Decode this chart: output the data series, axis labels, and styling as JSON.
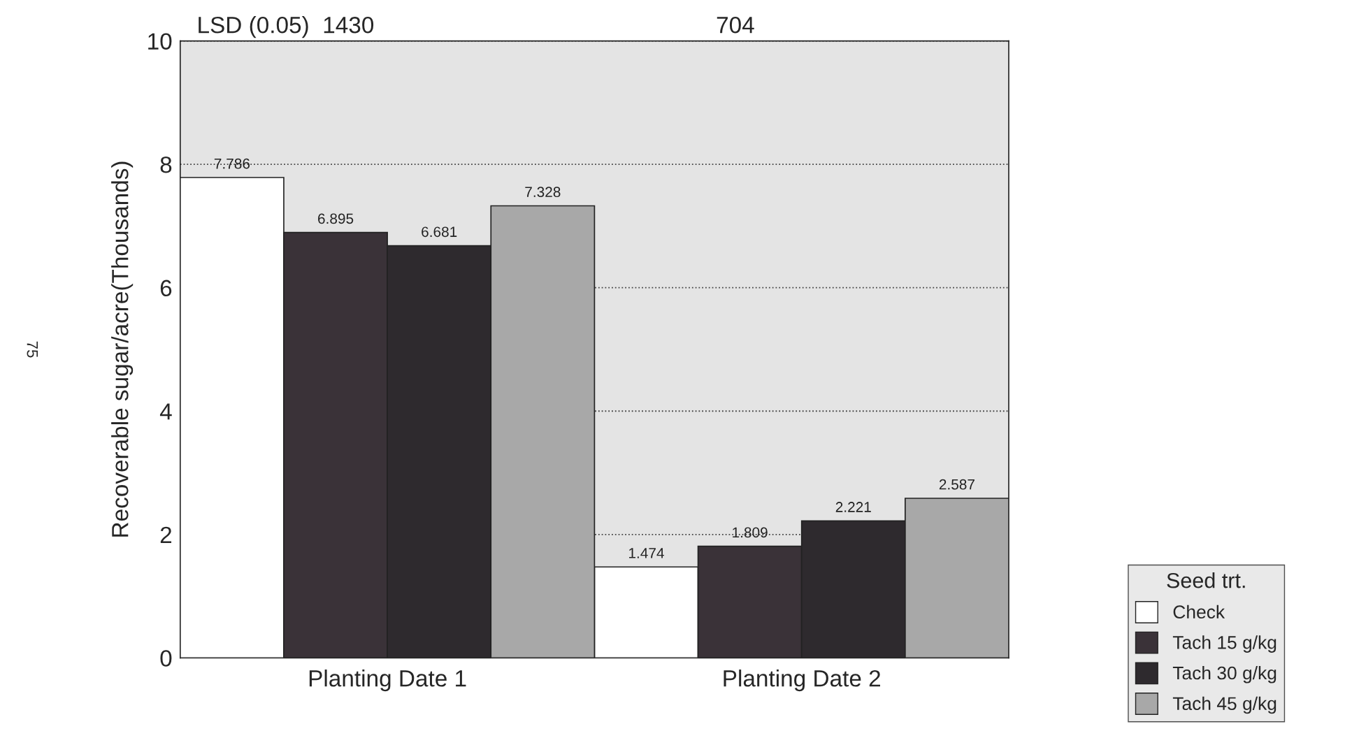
{
  "chart_data": {
    "type": "bar",
    "categories": [
      "Planting Date 1",
      "Planting Date 2"
    ],
    "ylabel": "Recoverable sugar/acre(Thousands)",
    "ylim": [
      0,
      10
    ],
    "yticks": [
      0,
      2,
      4,
      6,
      8,
      10
    ],
    "legend_title": "Seed trt.",
    "series": [
      {
        "name": "Check",
        "color": "#ffffff",
        "values": [
          7.786,
          1.474
        ]
      },
      {
        "name": "Tach 15 g/kg",
        "color": "#3a3238",
        "values": [
          6.895,
          1.809
        ]
      },
      {
        "name": "Tach 30 g/kg",
        "color": "#2e2a2e",
        "values": [
          6.681,
          2.221
        ]
      },
      {
        "name": "Tach 45 g/kg",
        "color": "#a8a8a8",
        "values": [
          7.328,
          2.587
        ]
      }
    ],
    "data_labels": true,
    "grid": "y",
    "line_style": "dotted",
    "legend": "bottom right",
    "annotations": [
      "LSD (0.05)  1430",
      "704",
      "75"
    ]
  }
}
